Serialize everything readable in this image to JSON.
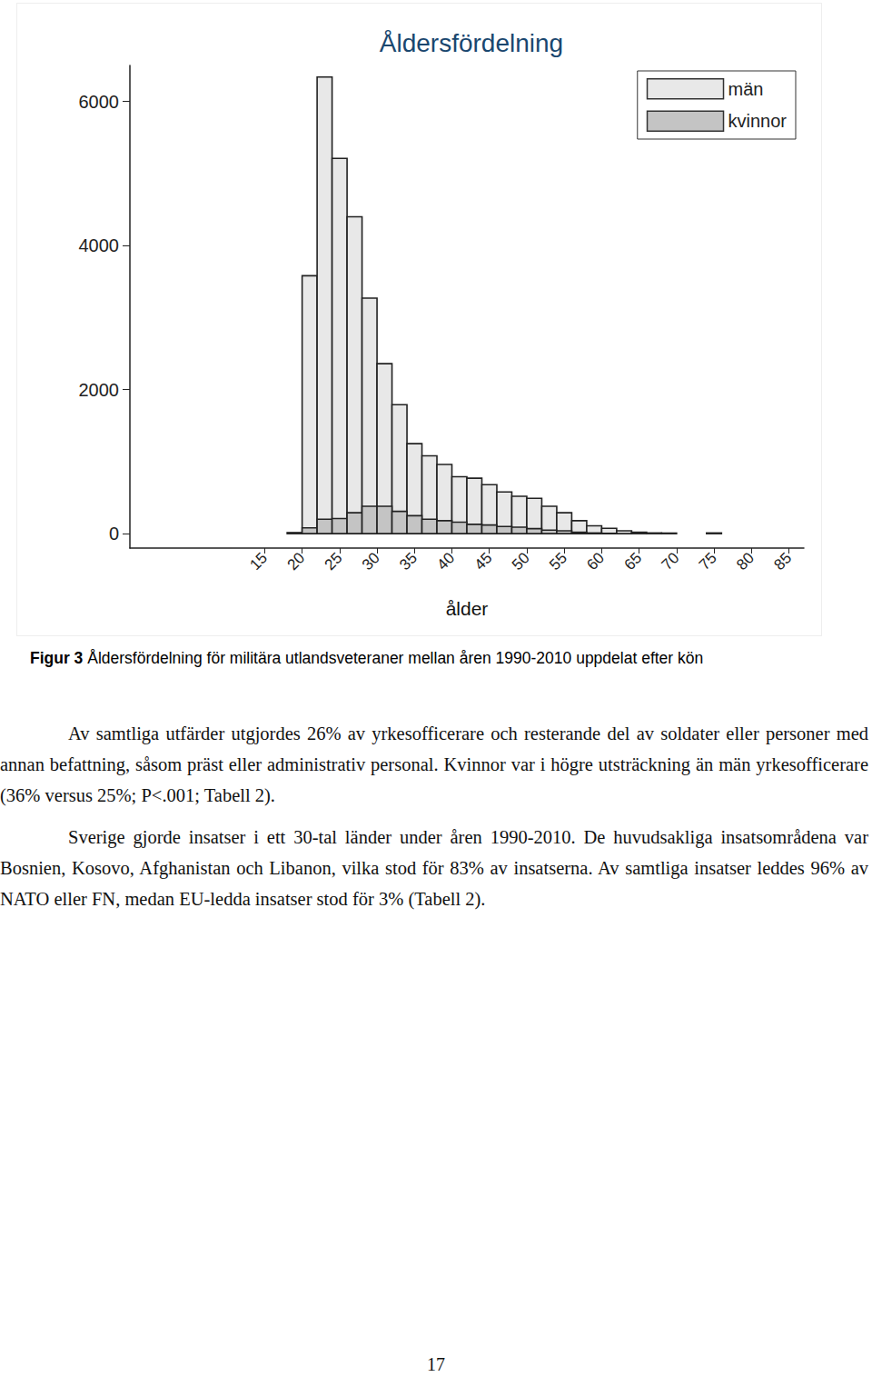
{
  "chart_data": {
    "type": "histogram",
    "title": "Åldersfördelning",
    "x_label": "ålder",
    "bins": [
      18,
      20,
      22,
      24,
      26,
      28,
      30,
      32,
      34,
      36,
      38,
      40,
      42,
      44,
      46,
      48,
      50,
      52,
      54,
      56,
      58,
      60,
      62,
      64,
      66,
      68,
      70,
      72,
      74,
      76
    ],
    "series": [
      {
        "name": "män",
        "color": "#e8e8e8",
        "values": [
          15,
          3580,
          6340,
          5210,
          4400,
          3270,
          2360,
          1790,
          1250,
          1080,
          960,
          790,
          770,
          680,
          580,
          520,
          490,
          380,
          290,
          180,
          110,
          75,
          40,
          20,
          10,
          8,
          0,
          0,
          10
        ]
      },
      {
        "name": "kvinnor",
        "color": "#c4c4c4",
        "values": [
          0,
          80,
          200,
          210,
          290,
          380,
          380,
          310,
          250,
          200,
          180,
          160,
          130,
          120,
          100,
          90,
          70,
          50,
          40,
          20,
          10,
          5,
          0,
          0,
          0,
          0,
          0,
          0,
          0
        ]
      }
    ],
    "xlim": [
      -3,
      87
    ],
    "xticks": [
      15,
      20,
      25,
      30,
      35,
      40,
      45,
      50,
      55,
      60,
      65,
      70,
      75,
      80,
      85
    ],
    "ylim": [
      -200,
      6500
    ],
    "yticks": [
      0,
      2000,
      4000,
      6000
    ],
    "legend": "top-right",
    "grid": false
  },
  "caption": {
    "label": "Figur 3",
    "text": "Åldersfördelning för militära utlandsveteraner mellan åren 1990-2010 uppdelat efter kön"
  },
  "paragraphs": [
    "Av samtliga utfärder utgjordes 26% av yrkesofficerare och resterande del av soldater eller personer med annan befattning, såsom präst eller administrativ personal. Kvinnor var i högre utsträckning än män yrkesofficerare (36% versus 25%; P<.001; Tabell 2).",
    "Sverige gjorde insatser i ett 30-tal länder under åren 1990-2010. De huvudsakliga insatsområdena var Bosnien, Kosovo, Afghanistan och Libanon, vilka stod för 83% av insatserna. Av samtliga insatser leddes 96% av NATO eller FN, medan EU-ledda insatser stod för 3% (Tabell 2)."
  ],
  "page_number": 17
}
